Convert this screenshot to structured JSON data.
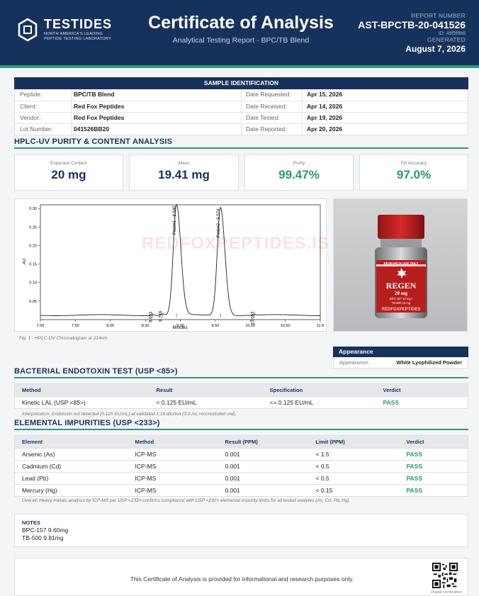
{
  "header": {
    "logo_name": "TESTIDES",
    "logo_sub1": "NORTH AMERICA'S LEADING",
    "logo_sub2": "PEPTIDE TESTING LABORATORY",
    "title": "Certificate of Analysis",
    "subtitle": "Analytical Testing Report  -  BPC/TB Blend",
    "report_label": "REPORT NUMBER",
    "report_number": "AST-BPCTB-20-041526",
    "id_text": "ID: 4df9f6b8",
    "generated_label": "GENERATED",
    "generated_date": "August 7, 2026"
  },
  "sample": {
    "title": "SAMPLE IDENTIFICATION",
    "left": [
      {
        "label": "Peptide:",
        "value": "BPC/TB Blend"
      },
      {
        "label": "Client:",
        "value": "Red Fox Peptides"
      },
      {
        "label": "Vendor:",
        "value": "Red Fox Peptides"
      },
      {
        "label": "Lot Number:",
        "value": "041526BB20"
      }
    ],
    "right": [
      {
        "label": "Date Requested:",
        "value": "Apr 15, 2026"
      },
      {
        "label": "Date Received:",
        "value": "Apr 14, 2026"
      },
      {
        "label": "Date Tested:",
        "value": "Apr 19, 2026"
      },
      {
        "label": "Date Reported:",
        "value": "Apr 20, 2026"
      }
    ]
  },
  "hplc": {
    "title": "HPLC-UV PURITY & CONTENT ANALYSIS",
    "stats": [
      {
        "label": "Expected Content",
        "value": "20 mg"
      },
      {
        "label": "Mass",
        "value": "19.41 mg"
      },
      {
        "label": "Purity",
        "value": "99.47%"
      },
      {
        "label": "Fill Accuracy",
        "value": "97.0%"
      }
    ],
    "figure_caption": "Fig. 1  -  HPLC-UV Chromatogram at 214nm",
    "watermark": "REDFOXPEPTIDES.IS",
    "vial_text": {
      "research": "RESEARCH USE ONLY",
      "brand": "REGEN",
      "dose": "20 mg",
      "line1": "BPC-157 10 mg /",
      "line2": "TB-500 10 mg",
      "footer": "REDFOXPEPTIDES"
    }
  },
  "chart_data": {
    "type": "line",
    "title": "",
    "xlabel": "Minutes",
    "ylabel": "AU",
    "xlim": [
      7.0,
      11.0
    ],
    "ylim": [
      0.0,
      0.31
    ],
    "x_ticks": [
      "7.00",
      "7.50",
      "8.00",
      "8.50",
      "9.00",
      "9.50",
      "10.00",
      "10.50",
      "11.0"
    ],
    "y_ticks": [
      "0.05",
      "0.10",
      "0.15",
      "0.20",
      "0.25",
      "0.30"
    ],
    "peaks": [
      {
        "rt": 8.603,
        "height": 0.003,
        "label": "8.603"
      },
      {
        "rt": 8.749,
        "height": 0.004,
        "label": "8.749"
      },
      {
        "rt": 8.945,
        "height": 0.298,
        "label": "Peak#1 - 8.945"
      },
      {
        "rt": 9.574,
        "height": 0.292,
        "label": "Peak#2 - 9.574"
      },
      {
        "rt": 10.063,
        "height": 0.002,
        "label": "10.063"
      }
    ],
    "grid": false,
    "legend": "none"
  },
  "appearance": {
    "title": "Appearance",
    "label": "Appearance:",
    "value": "White Lyophilized Powder"
  },
  "endotoxin": {
    "title": "BACTERIAL ENDOTOXIN TEST (USP <85>)",
    "headers": [
      "Method",
      "Result",
      "Specification",
      "Verdict"
    ],
    "row": [
      "Kinetic LAL (USP <85>)",
      "< 0.125 EU/mL",
      "<= 0.125 EU/mL",
      "PASS"
    ],
    "interpretation": "Interpretation: Endotoxin not detected (0.125 EU/mL) at validated 1:16 dilution (3.0 mL reconstituted vial)."
  },
  "elemental": {
    "title": "ELEMENTAL IMPURITIES (USP <233>)",
    "headers": [
      "Element",
      "Method",
      "Result (PPM)",
      "Limit (PPM)",
      "Verdict"
    ],
    "rows": [
      [
        "Arsenic (As)",
        "ICP-MS",
        "0.001",
        "< 1.5",
        "PASS"
      ],
      [
        "Cadmium (Cd)",
        "ICP-MS",
        "0.001",
        "< 0.5",
        "PASS"
      ],
      [
        "Lead (Pb)",
        "ICP-MS",
        "0.001",
        "< 0.5",
        "PASS"
      ],
      [
        "Mercury (Hg)",
        "ICP-MS",
        "0.001",
        "< 0.15",
        "PASS"
      ]
    ],
    "overall": "Overall: Heavy metals analysis by ICP-MS per USP <233> confirms compliance with USP <232> elemental impurity limits for all tested analytes (As, Cd, Pb, Hg)."
  },
  "notes": {
    "title": "NOTES",
    "lines": [
      "BPC-157 9.60mg",
      "TB-500 9.81mg"
    ]
  },
  "footer": {
    "text": "This Certificate of Analysis is provided for informational and research purposes only.",
    "qr_label": "Digital Verification"
  },
  "colors": {
    "navy": "#16325c",
    "green": "#2a9a6e",
    "accent_line": "#2e9a7a"
  }
}
